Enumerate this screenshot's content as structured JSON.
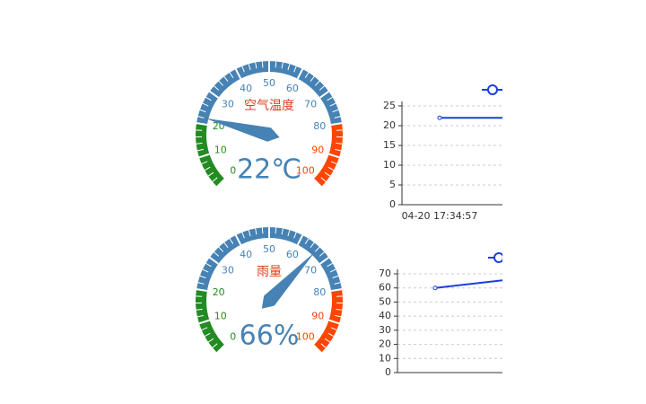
{
  "chart_data": [
    {
      "type": "gauge",
      "title": "空气温度",
      "value": 22,
      "value_label": "22℃",
      "ticks": [
        0,
        10,
        20,
        30,
        40,
        50,
        60,
        70,
        80,
        90,
        100
      ],
      "bands": [
        {
          "to": 20,
          "color": "#228b22"
        },
        {
          "to": 80,
          "color": "#4682b4"
        },
        {
          "to": 100,
          "color": "#ff4500"
        }
      ],
      "needle_color": "#4682b4",
      "title_color": "#e0401e"
    },
    {
      "type": "line",
      "categories": [
        "04-20 17:34:57",
        null
      ],
      "series": [
        {
          "color": "#1b3ee0",
          "values": [
            22,
            22
          ]
        }
      ],
      "ylim": [
        0,
        25
      ],
      "yticks": [
        0,
        5,
        10,
        15,
        20,
        25
      ],
      "grid": true,
      "legend": "top-right"
    },
    {
      "type": "gauge",
      "title": "雨量",
      "value": 66,
      "value_label": "66%",
      "ticks": [
        0,
        10,
        20,
        30,
        40,
        50,
        60,
        70,
        80,
        90,
        100
      ],
      "bands": [
        {
          "to": 20,
          "color": "#228b22"
        },
        {
          "to": 80,
          "color": "#4682b4"
        },
        {
          "to": 100,
          "color": "#ff4500"
        }
      ],
      "needle_color": "#4682b4",
      "title_color": "#e0401e"
    },
    {
      "type": "line",
      "categories": [
        "04-20 17:34:57",
        null
      ],
      "series": [
        {
          "color": "#1b3ee0",
          "values": [
            60,
            66
          ]
        }
      ],
      "ylim": [
        0,
        70
      ],
      "yticks": [
        0,
        10,
        20,
        30,
        40,
        50,
        60,
        70
      ],
      "grid": true,
      "legend": "top-right"
    }
  ]
}
